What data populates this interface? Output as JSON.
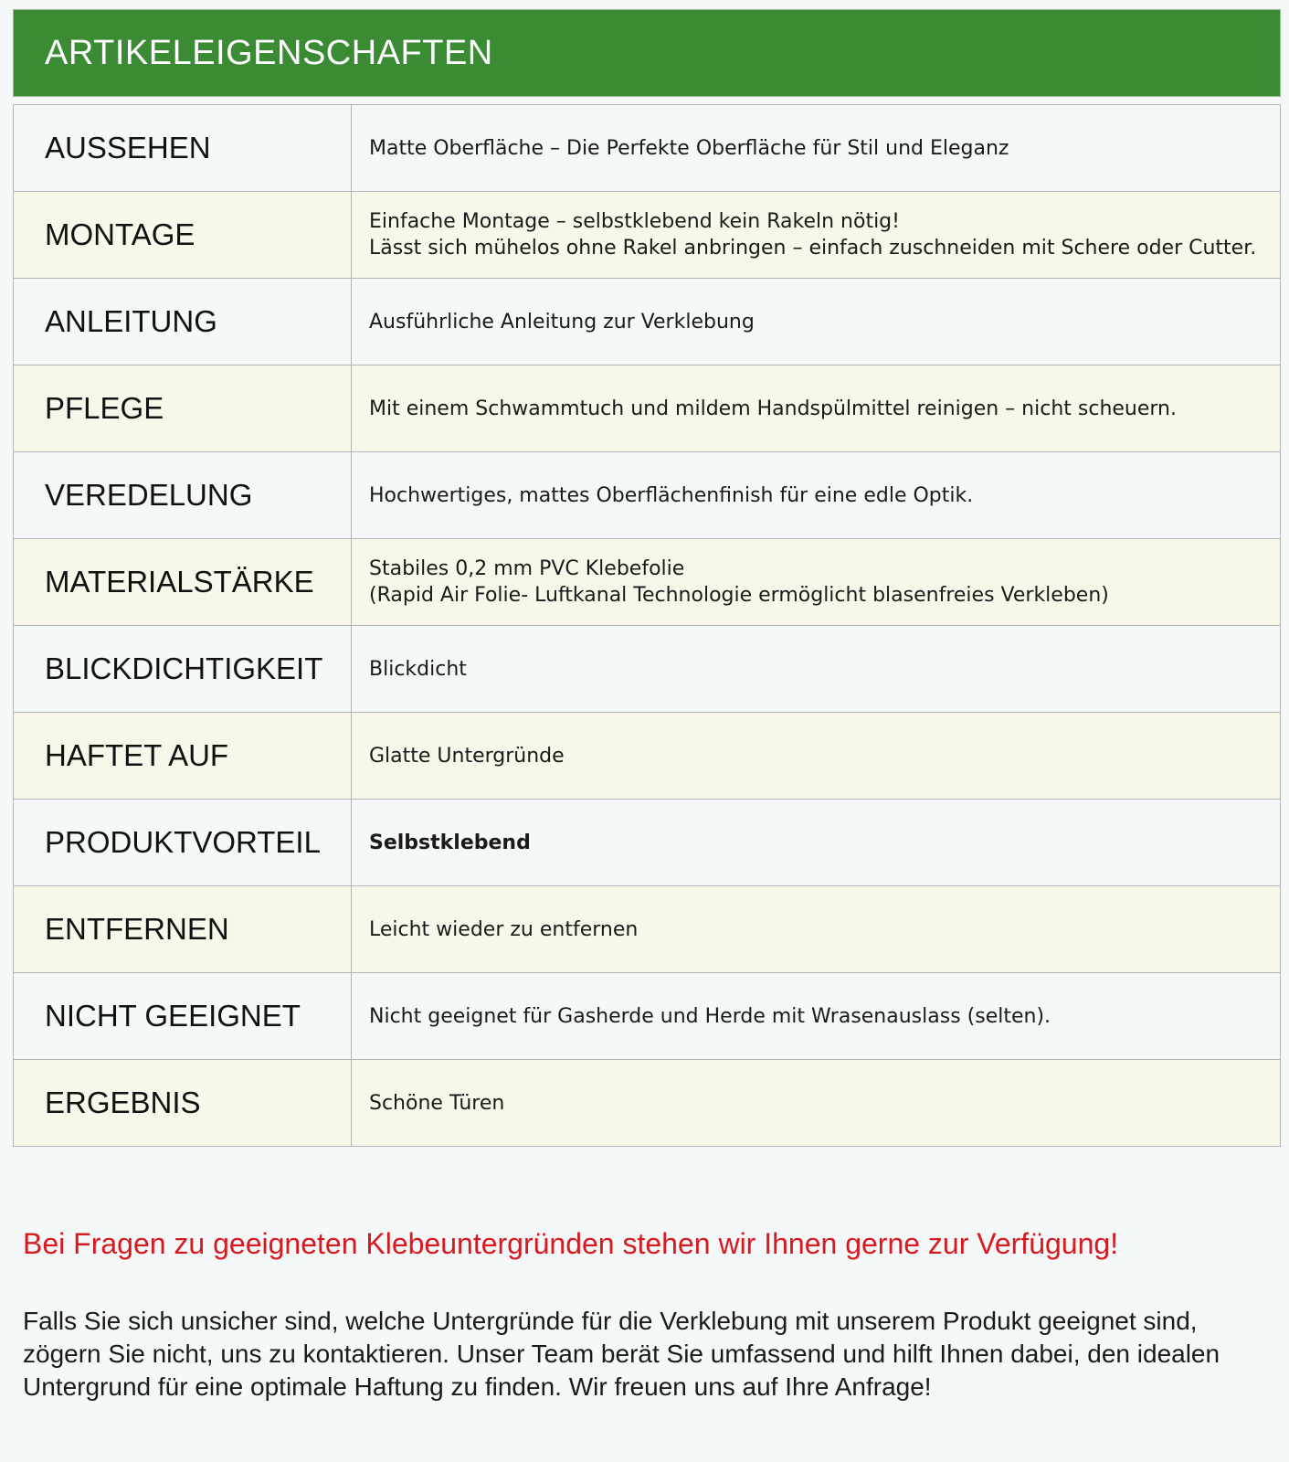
{
  "header": {
    "title": "ARTIKELEIGENSCHAFTEN"
  },
  "colors": {
    "header_bg": "#3b8b35",
    "cta_text": "#d71920",
    "row_alt": "#f7f8ea"
  },
  "rows": [
    {
      "key": "AUSSEHEN",
      "lines": [
        "Matte Oberfläche – Die Perfekte Oberfläche für Stil und Eleganz"
      ]
    },
    {
      "key": "MONTAGE",
      "lines": [
        "Einfache Montage  – selbstklebend kein Rakeln nötig!",
        "Lässt sich mühelos ohne Rakel anbringen – einfach zuschneiden mit Schere oder Cutter."
      ]
    },
    {
      "key": "ANLEITUNG",
      "lines": [
        "Ausführliche Anleitung zur Verklebung"
      ]
    },
    {
      "key": "PFLEGE",
      "lines": [
        "Mit einem Schwammtuch und mildem Handspülmittel reinigen – nicht scheuern."
      ]
    },
    {
      "key": "VEREDELUNG",
      "lines": [
        "Hochwertiges, mattes Oberflächenfinish für eine edle Optik."
      ]
    },
    {
      "key": "MATERIALSTÄRKE",
      "lines": [
        "Stabiles 0,2 mm PVC Klebefolie",
        "(Rapid Air Folie- Luftkanal Technologie ermöglicht blasenfreies Verkleben)"
      ]
    },
    {
      "key": "BLICKDICHTIGKEIT",
      "lines": [
        "Blickdicht"
      ]
    },
    {
      "key": "HAFTET AUF",
      "lines": [
        "Glatte Untergründe"
      ]
    },
    {
      "key": "PRODUKTVORTEIL",
      "lines": [
        "Selbstklebend"
      ],
      "bold": true
    },
    {
      "key": "ENTFERNEN",
      "lines": [
        "Leicht wieder zu entfernen"
      ]
    },
    {
      "key": "NICHT GEEIGNET",
      "lines": [
        "Nicht geeignet für Gasherde und Herde mit Wrasenauslass (selten)."
      ]
    },
    {
      "key": "ERGEBNIS",
      "lines": [
        "Schöne Türen"
      ]
    }
  ],
  "cta": "Bei Fragen zu geeigneten Klebeuntergründen stehen wir Ihnen gerne zur Verfügung!",
  "paragraph": "Falls Sie sich unsicher sind, welche Untergründe für die Verklebung mit unserem Produkt geeignet sind, zögern Sie nicht, uns zu kontaktieren. Unser Team berät Sie umfassend und hilft Ihnen dabei, den idealen Untergrund für eine optimale Haftung zu finden. Wir freuen uns auf Ihre Anfrage!"
}
